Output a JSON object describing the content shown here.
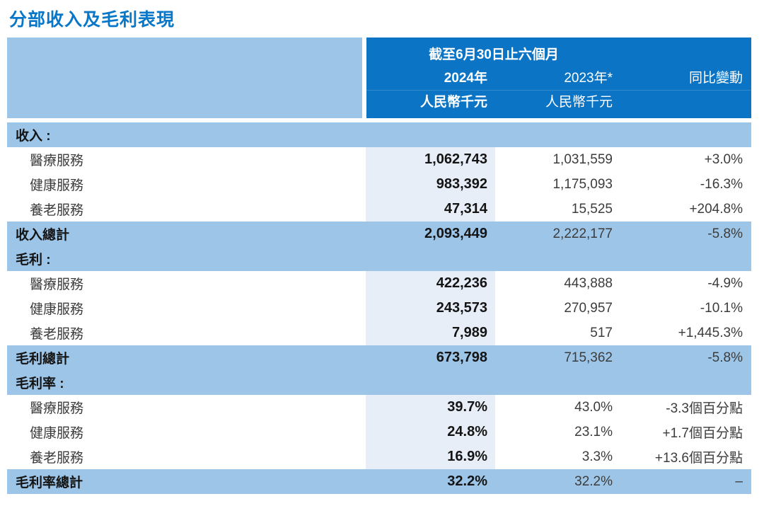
{
  "page_title": "分部收入及毛利表現",
  "table": {
    "header": {
      "period": "截至6月30日止六個月",
      "col_2024": "2024年",
      "col_2023": "2023年*",
      "col_change": "同比變動",
      "unit_2024": "人民幣千元",
      "unit_2023": "人民幣千元"
    },
    "sections": [
      {
        "label": "收入 :",
        "rows": [
          {
            "label": "醫療服務",
            "v2024": "1,062,743",
            "v2023": "1,031,559",
            "change": "+3.0%"
          },
          {
            "label": "健康服務",
            "v2024": "983,392",
            "v2023": "1,175,093",
            "change": "-16.3%"
          },
          {
            "label": "養老服務",
            "v2024": "47,314",
            "v2023": "15,525",
            "change": "+204.8%"
          }
        ],
        "total": {
          "label": "收入總計",
          "v2024": "2,093,449",
          "v2023": "2,222,177",
          "change": "-5.8%"
        }
      },
      {
        "label": "毛利 :",
        "rows": [
          {
            "label": "醫療服務",
            "v2024": "422,236",
            "v2023": "443,888",
            "change": "-4.9%"
          },
          {
            "label": "健康服務",
            "v2024": "243,573",
            "v2023": "270,957",
            "change": "-10.1%"
          },
          {
            "label": "養老服務",
            "v2024": "7,989",
            "v2023": "517",
            "change": "+1,445.3%"
          }
        ],
        "total": {
          "label": "毛利總計",
          "v2024": "673,798",
          "v2023": "715,362",
          "change": "-5.8%"
        }
      },
      {
        "label": "毛利率 :",
        "rows": [
          {
            "label": "醫療服務",
            "v2024": "39.7%",
            "v2023": "43.0%",
            "change": "-3.3個百分點"
          },
          {
            "label": "健康服務",
            "v2024": "24.8%",
            "v2023": "23.1%",
            "change": "+1.7個百分點"
          },
          {
            "label": "養老服務",
            "v2024": "16.9%",
            "v2023": "3.3%",
            "change": "+13.6個百分點"
          }
        ],
        "total": {
          "label": "毛利率總計",
          "v2024": "32.2%",
          "v2023": "32.2%",
          "change": "–"
        }
      }
    ]
  },
  "colors": {
    "title_blue": "#0977C8",
    "header_bg": "#0B74C4",
    "header_text": "#FFFFFF",
    "band_bg": "#9DC5E8",
    "highlight_column_bg": "#E8EEF8",
    "text_bold": "#141414",
    "text_regular": "#3C3C3C"
  }
}
